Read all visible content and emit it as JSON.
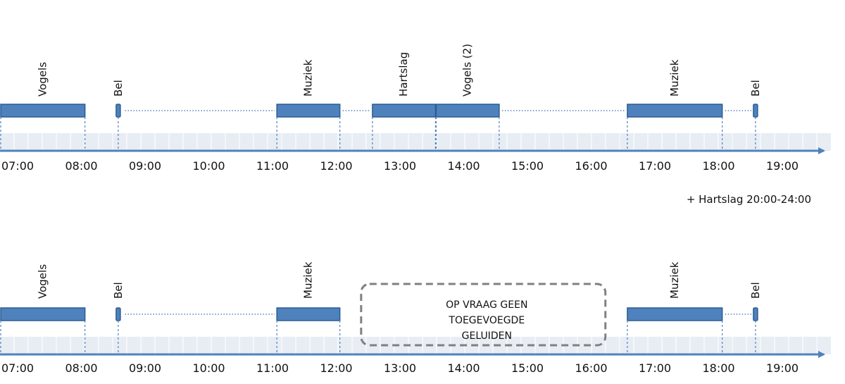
{
  "colors": {
    "bar_fill": "#4f81bd",
    "bar_stroke": "#2c5d92",
    "band": "#e8edf4",
    "axis": "#4f81bd",
    "dotted": "#4f81bd",
    "box_stroke": "#808080"
  },
  "chart_data": [
    {
      "type": "timeline",
      "ticks": [
        "07:00",
        "08:00",
        "09:00",
        "10:00",
        "11:00",
        "12:00",
        "13:00",
        "14:00",
        "15:00",
        "16:00",
        "17:00",
        "18:00",
        "19:00"
      ],
      "segments": [
        {
          "label": "Vogels",
          "start": "07:00",
          "end": "08:20"
        },
        {
          "label": "Bel",
          "start": "08:50",
          "end": "08:55"
        },
        {
          "label": "Muziek",
          "start": "11:20",
          "end": "12:20"
        },
        {
          "label": "Hartslag",
          "start": "12:50",
          "end": "13:50"
        },
        {
          "label": "Vogels (2)",
          "start": "13:50",
          "end": "14:50"
        },
        {
          "label": "Muziek",
          "start": "16:50",
          "end": "18:20"
        },
        {
          "label": "Bel",
          "start": "18:50",
          "end": "18:55"
        }
      ],
      "gaps": [
        [
          "08:55",
          "11:20"
        ],
        [
          "12:20",
          "12:50"
        ],
        [
          "14:50",
          "16:50"
        ],
        [
          "18:20",
          "18:50"
        ]
      ],
      "note": "+ Hartslag 20:00-24:00"
    },
    {
      "type": "timeline",
      "ticks": [
        "07:00",
        "08:00",
        "09:00",
        "10:00",
        "11:00",
        "12:00",
        "13:00",
        "14:00",
        "15:00",
        "16:00",
        "17:00",
        "18:00",
        "19:00"
      ],
      "segments": [
        {
          "label": "Vogels",
          "start": "07:00",
          "end": "08:20"
        },
        {
          "label": "Bel",
          "start": "08:50",
          "end": "08:55"
        },
        {
          "label": "Muziek",
          "start": "11:20",
          "end": "12:20"
        },
        {
          "label": "Muziek",
          "start": "16:50",
          "end": "18:20"
        },
        {
          "label": "Bel",
          "start": "18:50",
          "end": "18:55"
        }
      ],
      "gaps": [
        [
          "08:55",
          "11:20"
        ],
        [
          "18:20",
          "18:50"
        ]
      ],
      "box": {
        "start": "12:40",
        "end": "16:30",
        "lines": [
          "OP VRAAG GEEN",
          "TOEGEVOEGDE",
          "GELUIDEN"
        ]
      }
    }
  ]
}
